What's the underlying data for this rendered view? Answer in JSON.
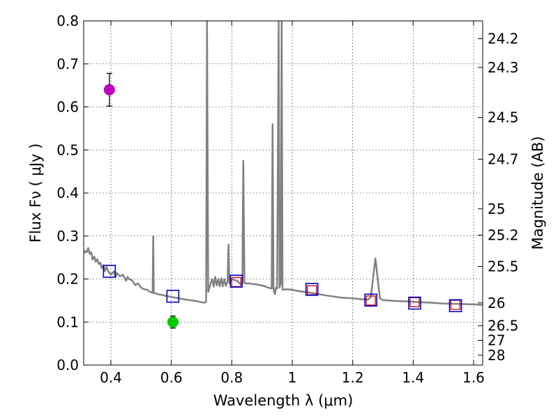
{
  "chart_data": {
    "type": "line",
    "xlabel": "Wavelength  λ (μm)",
    "ylabel": "Flux  Fν  ( μJy )",
    "ylabel_right": "Magnitude (AB)",
    "xlim": [
      0.31,
      1.63
    ],
    "ylim": [
      0.0,
      0.8
    ],
    "x_ticks": [
      0.4,
      0.6,
      0.8,
      1.0,
      1.2,
      1.4,
      1.6
    ],
    "x_tick_labels": [
      "0.4",
      "0.6",
      "0.8",
      "1",
      "1.2",
      "1.4",
      "1.6"
    ],
    "y_ticks": [
      0.0,
      0.1,
      0.2,
      0.3,
      0.4,
      0.5,
      0.6,
      0.7,
      0.8
    ],
    "y_tick_labels": [
      "0.0",
      "0.1",
      "0.2",
      "0.3",
      "0.4",
      "0.5",
      "0.6",
      "0.7",
      "0.8"
    ],
    "right_ticks": [
      {
        "label": "24.2",
        "flux": 0.7586
      },
      {
        "label": "24.3",
        "flux": 0.6918
      },
      {
        "label": "24.5",
        "flux": 0.5754
      },
      {
        "label": "24.7",
        "flux": 0.4786
      },
      {
        "label": "25",
        "flux": 0.3631
      },
      {
        "label": "25.2",
        "flux": 0.302
      },
      {
        "label": "25.5",
        "flux": 0.2291
      },
      {
        "label": "26",
        "flux": 0.1445
      },
      {
        "label": "26.5",
        "flux": 0.0912
      },
      {
        "label": "27",
        "flux": 0.0575
      },
      {
        "label": "28",
        "flux": 0.0229
      }
    ],
    "grid": true,
    "series": [
      {
        "kind": "model-spectrum",
        "color": "#808080",
        "points": [
          [
            0.31,
            0.26
          ],
          [
            0.315,
            0.265
          ],
          [
            0.32,
            0.262
          ],
          [
            0.325,
            0.272
          ],
          [
            0.33,
            0.258
          ],
          [
            0.335,
            0.262
          ],
          [
            0.34,
            0.245
          ],
          [
            0.345,
            0.252
          ],
          [
            0.35,
            0.24
          ],
          [
            0.355,
            0.246
          ],
          [
            0.36,
            0.235
          ],
          [
            0.365,
            0.238
          ],
          [
            0.37,
            0.225
          ],
          [
            0.375,
            0.232
          ],
          [
            0.38,
            0.218
          ],
          [
            0.385,
            0.228
          ],
          [
            0.39,
            0.22
          ],
          [
            0.395,
            0.214
          ],
          [
            0.4,
            0.21
          ],
          [
            0.41,
            0.218
          ],
          [
            0.415,
            0.205
          ],
          [
            0.42,
            0.214
          ],
          [
            0.43,
            0.206
          ],
          [
            0.44,
            0.21
          ],
          [
            0.45,
            0.196
          ],
          [
            0.455,
            0.205
          ],
          [
            0.46,
            0.2
          ],
          [
            0.47,
            0.197
          ],
          [
            0.48,
            0.186
          ],
          [
            0.49,
            0.19
          ],
          [
            0.5,
            0.18
          ],
          [
            0.51,
            0.176
          ],
          [
            0.52,
            0.175
          ],
          [
            0.53,
            0.17
          ],
          [
            0.538,
            0.168
          ],
          [
            0.54,
            0.3
          ],
          [
            0.542,
            0.168
          ],
          [
            0.55,
            0.166
          ],
          [
            0.56,
            0.164
          ],
          [
            0.57,
            0.163
          ],
          [
            0.58,
            0.161
          ],
          [
            0.59,
            0.16
          ],
          [
            0.6,
            0.158
          ],
          [
            0.62,
            0.156
          ],
          [
            0.64,
            0.153
          ],
          [
            0.66,
            0.151
          ],
          [
            0.68,
            0.149
          ],
          [
            0.7,
            0.146
          ],
          [
            0.71,
            0.145
          ],
          [
            0.715,
            0.147
          ],
          [
            0.718,
            0.8
          ],
          [
            0.722,
            0.17
          ],
          [
            0.73,
            0.19
          ],
          [
            0.735,
            0.2
          ],
          [
            0.74,
            0.182
          ],
          [
            0.745,
            0.205
          ],
          [
            0.75,
            0.185
          ],
          [
            0.755,
            0.2
          ],
          [
            0.76,
            0.183
          ],
          [
            0.765,
            0.202
          ],
          [
            0.77,
            0.183
          ],
          [
            0.775,
            0.2
          ],
          [
            0.78,
            0.184
          ],
          [
            0.786,
            0.195
          ],
          [
            0.789,
            0.28
          ],
          [
            0.792,
            0.19
          ],
          [
            0.8,
            0.2
          ],
          [
            0.82,
            0.195
          ],
          [
            0.825,
            0.19
          ],
          [
            0.83,
            0.188
          ],
          [
            0.835,
            0.192
          ],
          [
            0.838,
            0.475
          ],
          [
            0.842,
            0.19
          ],
          [
            0.85,
            0.19
          ],
          [
            0.86,
            0.19
          ],
          [
            0.87,
            0.188
          ],
          [
            0.88,
            0.188
          ],
          [
            0.89,
            0.186
          ],
          [
            0.9,
            0.185
          ],
          [
            0.91,
            0.183
          ],
          [
            0.92,
            0.18
          ],
          [
            0.932,
            0.178
          ],
          [
            0.935,
            0.56
          ],
          [
            0.938,
            0.178
          ],
          [
            0.94,
            0.17
          ],
          [
            0.943,
            0.165
          ],
          [
            0.946,
            0.18
          ],
          [
            0.95,
            0.178
          ],
          [
            0.955,
            0.8
          ],
          [
            0.958,
            0.18
          ],
          [
            0.962,
            0.19
          ],
          [
            0.965,
            0.8
          ],
          [
            0.968,
            0.175
          ],
          [
            0.98,
            0.176
          ],
          [
            1.0,
            0.175
          ],
          [
            1.02,
            0.172
          ],
          [
            1.05,
            0.169
          ],
          [
            1.08,
            0.166
          ],
          [
            1.1,
            0.163
          ],
          [
            1.13,
            0.16
          ],
          [
            1.16,
            0.157
          ],
          [
            1.2,
            0.155
          ],
          [
            1.23,
            0.153
          ],
          [
            1.25,
            0.152
          ],
          [
            1.26,
            0.158
          ],
          [
            1.275,
            0.248
          ],
          [
            1.29,
            0.155
          ],
          [
            1.3,
            0.151
          ],
          [
            1.34,
            0.149
          ],
          [
            1.38,
            0.148
          ],
          [
            1.42,
            0.146
          ],
          [
            1.46,
            0.145
          ],
          [
            1.5,
            0.143
          ],
          [
            1.55,
            0.142
          ],
          [
            1.6,
            0.141
          ],
          [
            1.63,
            0.14
          ]
        ]
      },
      {
        "kind": "synthetic-photometry-blue-squares",
        "color": "#0000cc",
        "points": [
          [
            0.395,
            0.218
          ],
          [
            0.605,
            0.16
          ],
          [
            0.815,
            0.195
          ],
          [
            1.065,
            0.176
          ],
          [
            1.26,
            0.151
          ],
          [
            1.405,
            0.144
          ],
          [
            1.54,
            0.138
          ]
        ]
      },
      {
        "kind": "synthetic-photometry-red-squares",
        "color": "#cc0000",
        "points": [
          [
            0.815,
            0.193
          ],
          [
            1.065,
            0.174
          ],
          [
            1.26,
            0.15
          ],
          [
            1.405,
            0.146
          ],
          [
            1.54,
            0.14
          ]
        ]
      },
      {
        "kind": "observed-photometry",
        "points": [
          {
            "x": 0.395,
            "y": 0.64,
            "err": 0.038,
            "color": "#bf00bf"
          },
          {
            "x": 0.605,
            "y": 0.1,
            "err": 0.014,
            "color": "#00cc00"
          }
        ]
      }
    ]
  }
}
